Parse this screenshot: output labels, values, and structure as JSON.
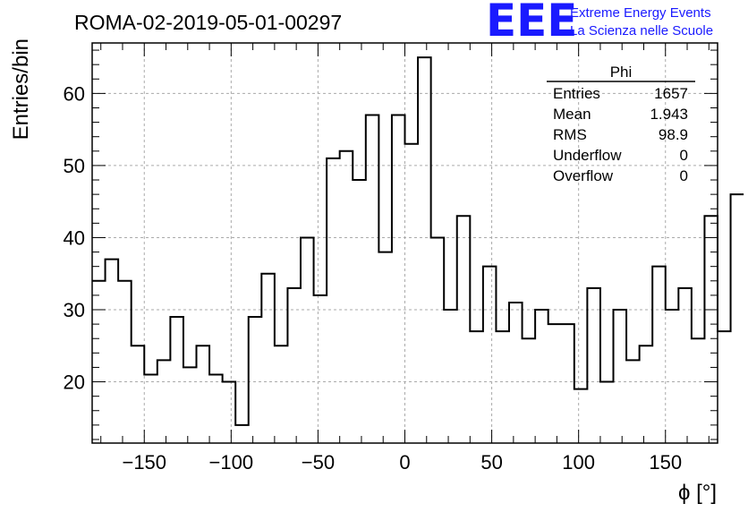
{
  "chart_data": {
    "type": "bar",
    "title": "ROMA-02-2019-05-01-00297",
    "xlabel": "ϕ [°]",
    "ylabel": "Entries/bin",
    "xlim": [
      -180,
      180
    ],
    "ylim": [
      11.5,
      67
    ],
    "grid": true,
    "x_ticks": [
      -150,
      -100,
      -50,
      0,
      50,
      100,
      150
    ],
    "x_tick_labels": [
      "−150",
      "−100",
      "−50",
      "0",
      "50",
      "100",
      "150"
    ],
    "y_ticks": [
      20,
      30,
      40,
      50,
      60
    ],
    "y_tick_labels": [
      "20",
      "30",
      "40",
      "50",
      "60"
    ],
    "bin_edges_start": -180,
    "bin_width": 7.5,
    "values": [
      34,
      37,
      34,
      25,
      21,
      23,
      29,
      22,
      25,
      21,
      20,
      14,
      29,
      35,
      25,
      33,
      40,
      32,
      51,
      52,
      48,
      57,
      38,
      57,
      53,
      65,
      40,
      30,
      43,
      27,
      36,
      27,
      31,
      26,
      30,
      28,
      28,
      19,
      33,
      20,
      30,
      23,
      25,
      36,
      30,
      33,
      26,
      43,
      27,
      46
    ],
    "stats": {
      "title": "Phi",
      "rows": [
        {
          "label": "Entries",
          "value": "1657"
        },
        {
          "label": "Mean",
          "value": "1.943"
        },
        {
          "label": "RMS",
          "value": "98.9"
        },
        {
          "label": "Underflow",
          "value": "0"
        },
        {
          "label": "Overflow",
          "value": "0"
        }
      ]
    },
    "logo": {
      "mark": "EEE",
      "line1": "Extreme Energy Events",
      "line2": "La Scienza nelle Scuole"
    }
  }
}
